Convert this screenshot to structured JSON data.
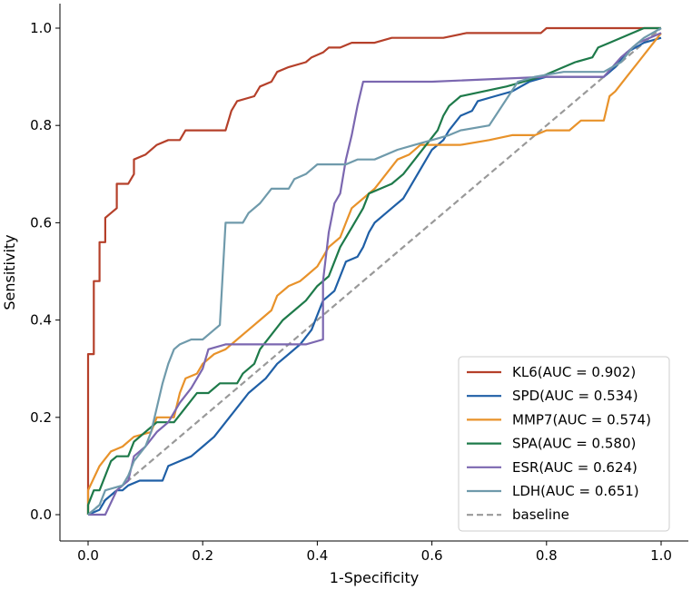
{
  "chart_data": {
    "type": "line",
    "title": "",
    "xlabel": "1-Specificity",
    "ylabel": "Sensitivity",
    "xlim": [
      0.0,
      1.0
    ],
    "ylim": [
      0.0,
      1.0
    ],
    "x_ticks": [
      "0.0",
      "0.2",
      "0.4",
      "0.6",
      "0.8",
      "1.0"
    ],
    "y_ticks": [
      "0.0",
      "0.2",
      "0.4",
      "0.6",
      "0.8",
      "1.0"
    ],
    "grid": false,
    "legend_position": "bottom-right",
    "series": [
      {
        "name": "KL6(AUC = 0.902)",
        "color": "#b5402a",
        "dash": false,
        "points": [
          [
            0,
            0
          ],
          [
            0,
            0.33
          ],
          [
            0.01,
            0.33
          ],
          [
            0.01,
            0.48
          ],
          [
            0.02,
            0.48
          ],
          [
            0.02,
            0.56
          ],
          [
            0.03,
            0.56
          ],
          [
            0.03,
            0.61
          ],
          [
            0.04,
            0.62
          ],
          [
            0.05,
            0.63
          ],
          [
            0.05,
            0.68
          ],
          [
            0.07,
            0.68
          ],
          [
            0.08,
            0.7
          ],
          [
            0.08,
            0.73
          ],
          [
            0.1,
            0.74
          ],
          [
            0.12,
            0.76
          ],
          [
            0.14,
            0.77
          ],
          [
            0.16,
            0.77
          ],
          [
            0.17,
            0.79
          ],
          [
            0.24,
            0.79
          ],
          [
            0.25,
            0.83
          ],
          [
            0.26,
            0.85
          ],
          [
            0.29,
            0.86
          ],
          [
            0.3,
            0.88
          ],
          [
            0.32,
            0.89
          ],
          [
            0.33,
            0.91
          ],
          [
            0.35,
            0.92
          ],
          [
            0.38,
            0.93
          ],
          [
            0.39,
            0.94
          ],
          [
            0.41,
            0.95
          ],
          [
            0.42,
            0.96
          ],
          [
            0.44,
            0.96
          ],
          [
            0.46,
            0.97
          ],
          [
            0.5,
            0.97
          ],
          [
            0.53,
            0.98
          ],
          [
            0.62,
            0.98
          ],
          [
            0.66,
            0.99
          ],
          [
            0.79,
            0.99
          ],
          [
            0.8,
            1.0
          ],
          [
            1.0,
            1.0
          ]
        ]
      },
      {
        "name": "SPD(AUC = 0.534)",
        "color": "#1f5fa6",
        "dash": false,
        "points": [
          [
            0,
            0
          ],
          [
            0.02,
            0.01
          ],
          [
            0.03,
            0.03
          ],
          [
            0.05,
            0.05
          ],
          [
            0.06,
            0.05
          ],
          [
            0.07,
            0.06
          ],
          [
            0.09,
            0.07
          ],
          [
            0.13,
            0.07
          ],
          [
            0.14,
            0.1
          ],
          [
            0.18,
            0.12
          ],
          [
            0.2,
            0.14
          ],
          [
            0.22,
            0.16
          ],
          [
            0.24,
            0.19
          ],
          [
            0.26,
            0.22
          ],
          [
            0.28,
            0.25
          ],
          [
            0.31,
            0.28
          ],
          [
            0.33,
            0.31
          ],
          [
            0.35,
            0.33
          ],
          [
            0.37,
            0.35
          ],
          [
            0.39,
            0.38
          ],
          [
            0.4,
            0.41
          ],
          [
            0.41,
            0.44
          ],
          [
            0.43,
            0.46
          ],
          [
            0.44,
            0.49
          ],
          [
            0.45,
            0.52
          ],
          [
            0.47,
            0.53
          ],
          [
            0.48,
            0.55
          ],
          [
            0.49,
            0.58
          ],
          [
            0.5,
            0.6
          ],
          [
            0.52,
            0.62
          ],
          [
            0.53,
            0.63
          ],
          [
            0.55,
            0.65
          ],
          [
            0.56,
            0.67
          ],
          [
            0.57,
            0.69
          ],
          [
            0.58,
            0.71
          ],
          [
            0.59,
            0.73
          ],
          [
            0.6,
            0.75
          ],
          [
            0.62,
            0.77
          ],
          [
            0.63,
            0.79
          ],
          [
            0.65,
            0.82
          ],
          [
            0.67,
            0.83
          ],
          [
            0.68,
            0.85
          ],
          [
            0.71,
            0.86
          ],
          [
            0.74,
            0.87
          ],
          [
            0.77,
            0.89
          ],
          [
            0.8,
            0.9
          ],
          [
            0.9,
            0.9
          ],
          [
            0.92,
            0.92
          ],
          [
            0.94,
            0.95
          ],
          [
            0.97,
            0.97
          ],
          [
            1.0,
            0.98
          ]
        ]
      },
      {
        "name": "MMP7(AUC = 0.574)",
        "color": "#e8922a",
        "dash": false,
        "points": [
          [
            0,
            0
          ],
          [
            0,
            0.05
          ],
          [
            0.02,
            0.1
          ],
          [
            0.04,
            0.13
          ],
          [
            0.06,
            0.14
          ],
          [
            0.08,
            0.16
          ],
          [
            0.11,
            0.17
          ],
          [
            0.12,
            0.2
          ],
          [
            0.15,
            0.2
          ],
          [
            0.16,
            0.25
          ],
          [
            0.17,
            0.28
          ],
          [
            0.19,
            0.29
          ],
          [
            0.2,
            0.31
          ],
          [
            0.22,
            0.33
          ],
          [
            0.24,
            0.34
          ],
          [
            0.26,
            0.36
          ],
          [
            0.28,
            0.38
          ],
          [
            0.3,
            0.4
          ],
          [
            0.32,
            0.42
          ],
          [
            0.33,
            0.45
          ],
          [
            0.35,
            0.47
          ],
          [
            0.37,
            0.48
          ],
          [
            0.38,
            0.49
          ],
          [
            0.4,
            0.51
          ],
          [
            0.41,
            0.53
          ],
          [
            0.42,
            0.55
          ],
          [
            0.44,
            0.57
          ],
          [
            0.45,
            0.6
          ],
          [
            0.46,
            0.63
          ],
          [
            0.48,
            0.65
          ],
          [
            0.5,
            0.67
          ],
          [
            0.52,
            0.7
          ],
          [
            0.54,
            0.73
          ],
          [
            0.56,
            0.74
          ],
          [
            0.58,
            0.76
          ],
          [
            0.65,
            0.76
          ],
          [
            0.7,
            0.77
          ],
          [
            0.74,
            0.78
          ],
          [
            0.78,
            0.78
          ],
          [
            0.8,
            0.79
          ],
          [
            0.84,
            0.79
          ],
          [
            0.86,
            0.81
          ],
          [
            0.9,
            0.81
          ],
          [
            0.91,
            0.86
          ],
          [
            0.92,
            0.87
          ],
          [
            0.94,
            0.9
          ],
          [
            0.96,
            0.93
          ],
          [
            0.98,
            0.96
          ],
          [
            1.0,
            0.99
          ]
        ]
      },
      {
        "name": "SPA(AUC = 0.580)",
        "color": "#1e7a4a",
        "dash": false,
        "points": [
          [
            0,
            0
          ],
          [
            0,
            0.02
          ],
          [
            0.01,
            0.05
          ],
          [
            0.02,
            0.05
          ],
          [
            0.03,
            0.08
          ],
          [
            0.04,
            0.11
          ],
          [
            0.05,
            0.12
          ],
          [
            0.07,
            0.12
          ],
          [
            0.08,
            0.15
          ],
          [
            0.1,
            0.17
          ],
          [
            0.12,
            0.19
          ],
          [
            0.15,
            0.19
          ],
          [
            0.17,
            0.22
          ],
          [
            0.19,
            0.25
          ],
          [
            0.21,
            0.25
          ],
          [
            0.23,
            0.27
          ],
          [
            0.26,
            0.27
          ],
          [
            0.27,
            0.29
          ],
          [
            0.29,
            0.31
          ],
          [
            0.3,
            0.34
          ],
          [
            0.32,
            0.37
          ],
          [
            0.34,
            0.4
          ],
          [
            0.36,
            0.42
          ],
          [
            0.38,
            0.44
          ],
          [
            0.4,
            0.47
          ],
          [
            0.42,
            0.49
          ],
          [
            0.43,
            0.52
          ],
          [
            0.44,
            0.55
          ],
          [
            0.46,
            0.59
          ],
          [
            0.48,
            0.63
          ],
          [
            0.49,
            0.66
          ],
          [
            0.51,
            0.67
          ],
          [
            0.53,
            0.68
          ],
          [
            0.55,
            0.7
          ],
          [
            0.57,
            0.73
          ],
          [
            0.59,
            0.76
          ],
          [
            0.61,
            0.79
          ],
          [
            0.62,
            0.82
          ],
          [
            0.63,
            0.84
          ],
          [
            0.65,
            0.86
          ],
          [
            0.69,
            0.87
          ],
          [
            0.73,
            0.88
          ],
          [
            0.76,
            0.89
          ],
          [
            0.79,
            0.9
          ],
          [
            0.83,
            0.92
          ],
          [
            0.85,
            0.93
          ],
          [
            0.88,
            0.94
          ],
          [
            0.89,
            0.96
          ],
          [
            0.91,
            0.97
          ],
          [
            0.93,
            0.98
          ],
          [
            0.95,
            0.99
          ],
          [
            0.97,
            1.0
          ],
          [
            1.0,
            1.0
          ]
        ]
      },
      {
        "name": "ESR(AUC = 0.624)",
        "color": "#7b67b0",
        "dash": false,
        "points": [
          [
            0,
            0
          ],
          [
            0.03,
            0.0
          ],
          [
            0.05,
            0.05
          ],
          [
            0.07,
            0.07
          ],
          [
            0.08,
            0.12
          ],
          [
            0.1,
            0.14
          ],
          [
            0.12,
            0.17
          ],
          [
            0.14,
            0.19
          ],
          [
            0.16,
            0.23
          ],
          [
            0.18,
            0.26
          ],
          [
            0.2,
            0.3
          ],
          [
            0.21,
            0.34
          ],
          [
            0.24,
            0.35
          ],
          [
            0.38,
            0.35
          ],
          [
            0.41,
            0.36
          ],
          [
            0.41,
            0.48
          ],
          [
            0.42,
            0.58
          ],
          [
            0.43,
            0.64
          ],
          [
            0.44,
            0.66
          ],
          [
            0.45,
            0.73
          ],
          [
            0.46,
            0.78
          ],
          [
            0.47,
            0.84
          ],
          [
            0.48,
            0.89
          ],
          [
            0.6,
            0.89
          ],
          [
            0.8,
            0.9
          ],
          [
            0.9,
            0.9
          ],
          [
            0.93,
            0.94
          ],
          [
            0.96,
            0.97
          ],
          [
            1.0,
            0.99
          ]
        ]
      },
      {
        "name": "LDH(AUC = 0.651)",
        "color": "#6f9aab",
        "dash": false,
        "points": [
          [
            0,
            0
          ],
          [
            0.02,
            0.02
          ],
          [
            0.03,
            0.05
          ],
          [
            0.06,
            0.06
          ],
          [
            0.07,
            0.08
          ],
          [
            0.08,
            0.11
          ],
          [
            0.1,
            0.14
          ],
          [
            0.11,
            0.17
          ],
          [
            0.12,
            0.22
          ],
          [
            0.13,
            0.27
          ],
          [
            0.14,
            0.31
          ],
          [
            0.15,
            0.34
          ],
          [
            0.16,
            0.35
          ],
          [
            0.18,
            0.36
          ],
          [
            0.2,
            0.36
          ],
          [
            0.22,
            0.38
          ],
          [
            0.23,
            0.39
          ],
          [
            0.24,
            0.6
          ],
          [
            0.27,
            0.6
          ],
          [
            0.28,
            0.62
          ],
          [
            0.3,
            0.64
          ],
          [
            0.32,
            0.67
          ],
          [
            0.35,
            0.67
          ],
          [
            0.36,
            0.69
          ],
          [
            0.38,
            0.7
          ],
          [
            0.4,
            0.72
          ],
          [
            0.45,
            0.72
          ],
          [
            0.47,
            0.73
          ],
          [
            0.5,
            0.73
          ],
          [
            0.54,
            0.75
          ],
          [
            0.57,
            0.76
          ],
          [
            0.6,
            0.77
          ],
          [
            0.63,
            0.78
          ],
          [
            0.65,
            0.79
          ],
          [
            0.7,
            0.8
          ],
          [
            0.75,
            0.89
          ],
          [
            0.78,
            0.9
          ],
          [
            0.83,
            0.91
          ],
          [
            0.9,
            0.91
          ],
          [
            0.93,
            0.93
          ],
          [
            0.95,
            0.96
          ],
          [
            0.97,
            0.98
          ],
          [
            1.0,
            1.0
          ]
        ]
      },
      {
        "name": "baseline",
        "color": "#999999",
        "dash": true,
        "points": [
          [
            0,
            0
          ],
          [
            1,
            1
          ]
        ]
      }
    ]
  }
}
